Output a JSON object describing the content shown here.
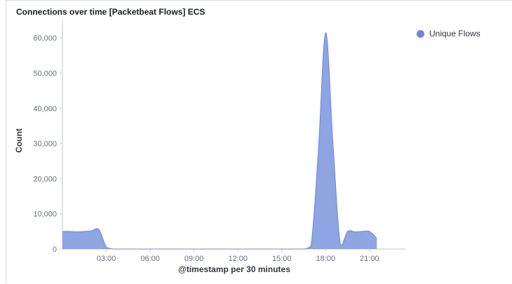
{
  "panel": {
    "title": "Connections over time [Packetbeat Flows] ECS"
  },
  "colors": {
    "series": "#6f87d8",
    "series_fill": "#8ea4e3",
    "axis": "#c5cad3",
    "grid": "#eef0f3"
  },
  "chart_data": {
    "type": "area",
    "xlabel": "@timestamp per 30 minutes",
    "ylabel": "Count",
    "ylim": [
      0,
      65000
    ],
    "xlim": [
      0,
      23.5
    ],
    "x_unit": "hour of day",
    "y_ticks": [
      0,
      10000,
      20000,
      30000,
      40000,
      50000,
      60000
    ],
    "y_tick_labels": [
      "0",
      "10,000",
      "20,000",
      "30,000",
      "40,000",
      "50,000",
      "60,000"
    ],
    "x_ticks": [
      3,
      6,
      9,
      12,
      15,
      18,
      21
    ],
    "x_tick_labels": [
      "03:00",
      "06:00",
      "09:00",
      "12:00",
      "15:00",
      "18:00",
      "21:00"
    ],
    "grid": false,
    "legend_position": "top-right",
    "series": [
      {
        "name": "Unique Flows",
        "x": [
          0,
          0.5,
          1,
          1.5,
          2,
          2.5,
          3,
          3.5,
          4,
          5,
          6,
          7,
          8,
          9,
          10,
          11,
          12,
          13,
          14,
          15,
          16,
          16.5,
          17,
          17.5,
          18,
          18.5,
          19,
          19.5,
          20,
          20.5,
          21,
          21.5
        ],
        "y": [
          5000,
          5000,
          4900,
          5000,
          5200,
          5500,
          600,
          0,
          0,
          0,
          0,
          0,
          0,
          0,
          0,
          0,
          0,
          0,
          0,
          0,
          0,
          0,
          1000,
          28000,
          61500,
          30000,
          1500,
          5000,
          4900,
          5000,
          5000,
          3000
        ]
      }
    ]
  }
}
